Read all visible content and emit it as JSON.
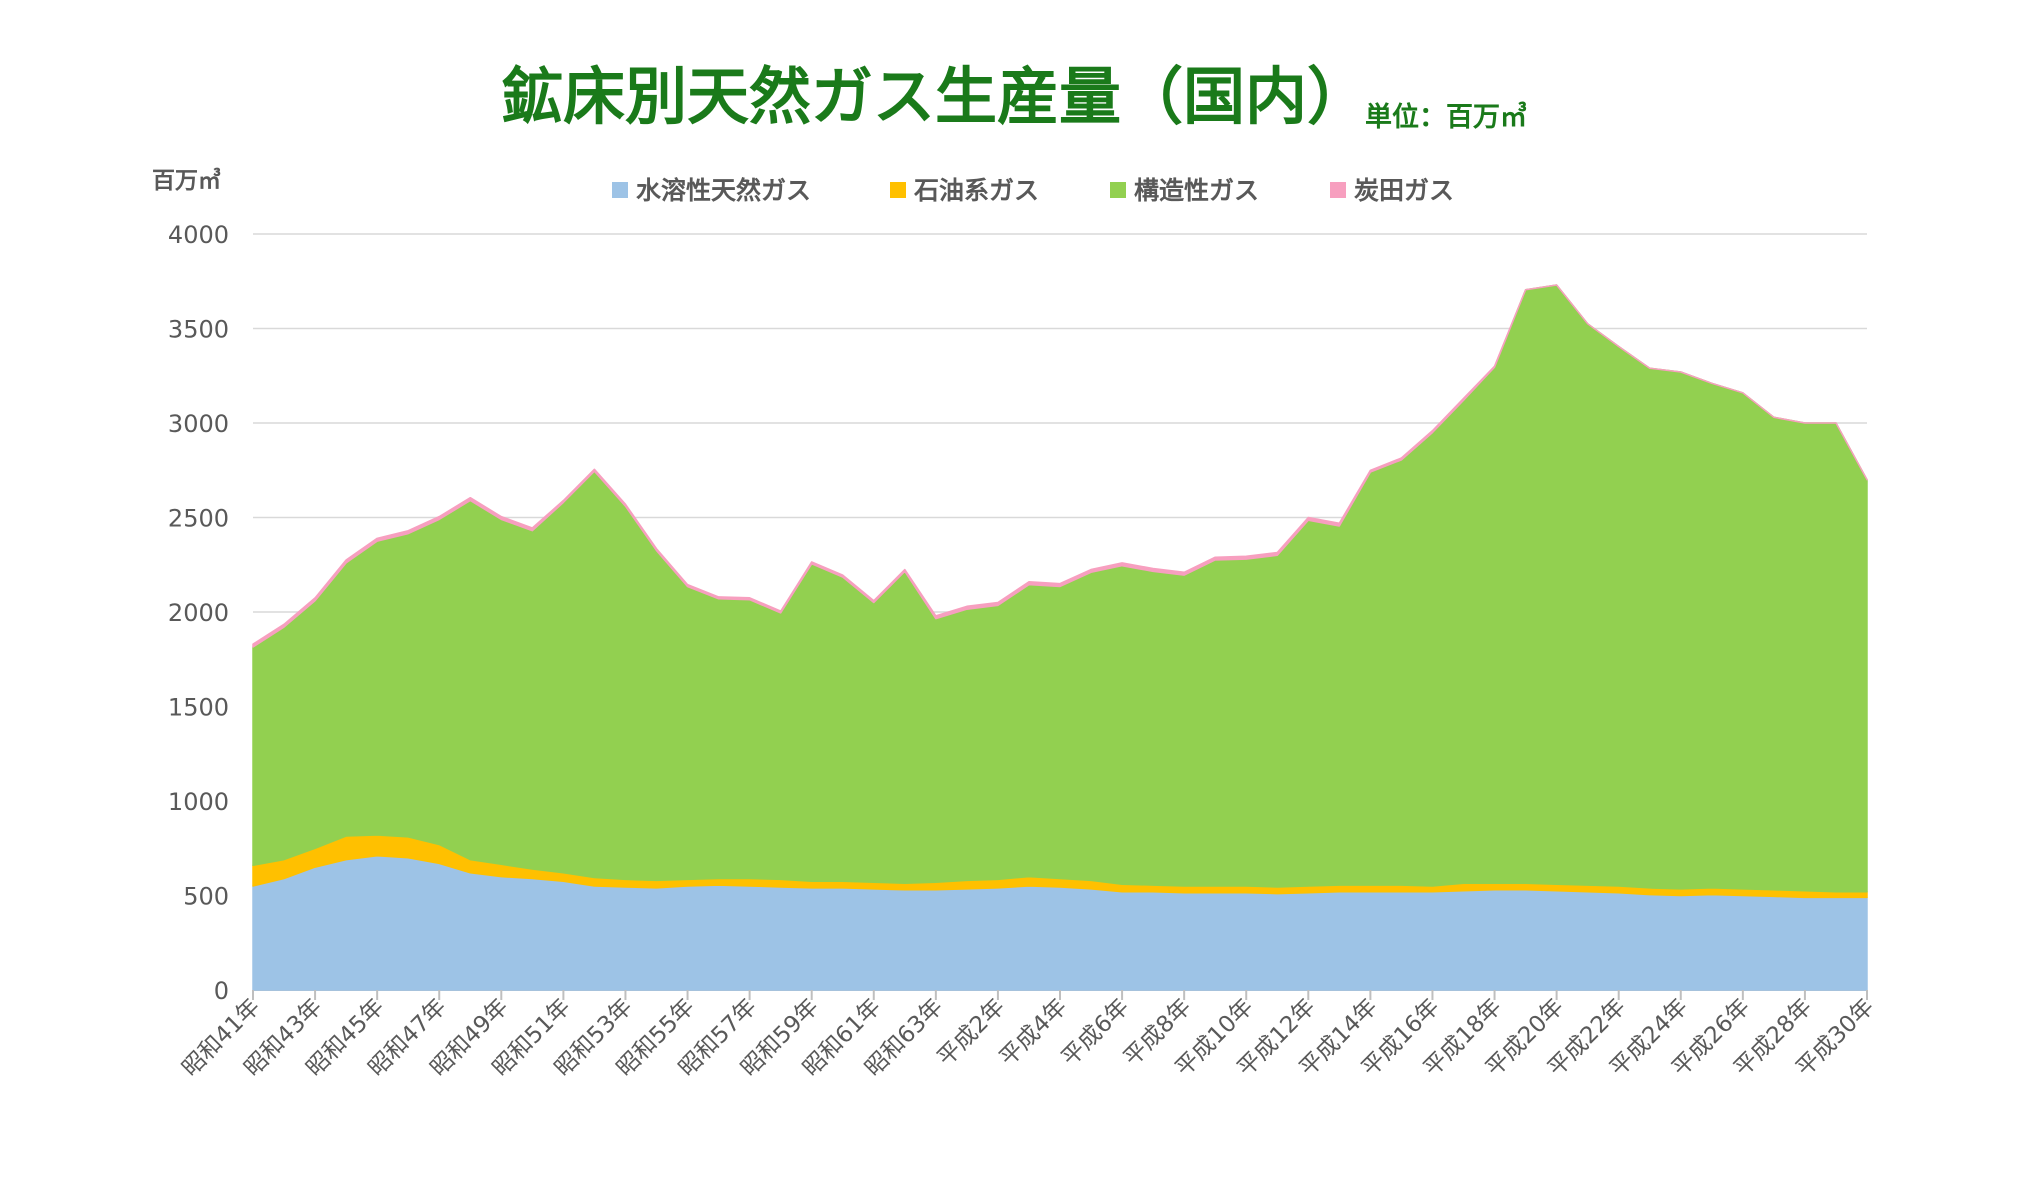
{
  "chart_data": {
    "type": "area",
    "stacked": true,
    "title": "鉱床別天然ガス生産量（国内）",
    "subtitle": "単位：百万㎥",
    "ylabel": "百万㎥",
    "xlabel": "",
    "ylim": [
      0,
      4000
    ],
    "yticks": [
      0,
      500,
      1000,
      1500,
      2000,
      2500,
      3000,
      3500,
      4000
    ],
    "grid": true,
    "legend_position": "top",
    "x": [
      "昭和41年",
      "昭和42年",
      "昭和43年",
      "昭和44年",
      "昭和45年",
      "昭和46年",
      "昭和47年",
      "昭和48年",
      "昭和49年",
      "昭和50年",
      "昭和51年",
      "昭和52年",
      "昭和53年",
      "昭和54年",
      "昭和55年",
      "昭和56年",
      "昭和57年",
      "昭和58年",
      "昭和59年",
      "昭和60年",
      "昭和61年",
      "昭和62年",
      "昭和63年",
      "平成元年",
      "平成2年",
      "平成3年",
      "平成4年",
      "平成5年",
      "平成6年",
      "平成7年",
      "平成8年",
      "平成9年",
      "平成10年",
      "平成11年",
      "平成12年",
      "平成13年",
      "平成14年",
      "平成15年",
      "平成16年",
      "平成17年",
      "平成18年",
      "平成19年",
      "平成20年",
      "平成21年",
      "平成22年",
      "平成23年",
      "平成24年",
      "平成25年",
      "平成26年",
      "平成27年",
      "平成28年",
      "平成29年",
      "平成30年"
    ],
    "x_tick_labels": [
      "昭和41年",
      "",
      "昭和43年",
      "",
      "昭和45年",
      "",
      "昭和47年",
      "",
      "昭和49年",
      "",
      "昭和51年",
      "",
      "昭和53年",
      "",
      "昭和55年",
      "",
      "昭和57年",
      "",
      "昭和59年",
      "",
      "昭和61年",
      "",
      "昭和63年",
      "",
      "平成2年",
      "",
      "平成4年",
      "",
      "平成6年",
      "",
      "平成8年",
      "",
      "平成10年",
      "",
      "平成12年",
      "",
      "平成14年",
      "",
      "平成16年",
      "",
      "平成18年",
      "",
      "平成20年",
      "",
      "平成22年",
      "",
      "平成24年",
      "",
      "平成26年",
      "",
      "平成28年",
      "",
      "平成30年"
    ],
    "series": [
      {
        "name": "水溶性天然ガス",
        "color": "#9dc3e6",
        "values": [
          550,
          590,
          650,
          690,
          710,
          700,
          670,
          620,
          600,
          590,
          575,
          550,
          545,
          540,
          550,
          555,
          550,
          545,
          540,
          540,
          535,
          530,
          530,
          535,
          540,
          550,
          545,
          535,
          520,
          520,
          515,
          515,
          515,
          510,
          515,
          520,
          520,
          520,
          520,
          525,
          530,
          530,
          525,
          520,
          515,
          505,
          500,
          505,
          500,
          495,
          490,
          490,
          490
        ]
      },
      {
        "name": "石油系ガス",
        "color": "#ffc000",
        "values": [
          110,
          100,
          100,
          125,
          110,
          110,
          100,
          70,
          65,
          50,
          45,
          45,
          40,
          40,
          35,
          35,
          40,
          40,
          35,
          35,
          35,
          35,
          40,
          45,
          45,
          50,
          45,
          45,
          40,
          35,
          35,
          35,
          35,
          35,
          35,
          35,
          35,
          35,
          30,
          40,
          35,
          35,
          35,
          35,
          35,
          35,
          35,
          35,
          35,
          35,
          35,
          30,
          30
        ]
      },
      {
        "name": "構造性ガス",
        "color": "#92d050",
        "values": [
          1155,
          1230,
          1310,
          1445,
          1555,
          1605,
          1720,
          1900,
          1825,
          1790,
          1960,
          2150,
          1975,
          1745,
          1550,
          1480,
          1475,
          1410,
          1680,
          1610,
          1480,
          1650,
          1395,
          1435,
          1450,
          1545,
          1545,
          1630,
          1685,
          1660,
          1645,
          1725,
          1730,
          1755,
          1935,
          1900,
          2185,
          2250,
          2400,
          2555,
          2730,
          3140,
          3170,
          2970,
          2855,
          2750,
          2735,
          2670,
          2625,
          2500,
          2475,
          2480,
          2180
        ]
      },
      {
        "name": "炭田ガス",
        "color": "#f79fbf",
        "values": [
          15,
          15,
          15,
          15,
          15,
          15,
          15,
          15,
          15,
          15,
          10,
          10,
          10,
          10,
          10,
          10,
          10,
          10,
          10,
          10,
          10,
          10,
          15,
          15,
          15,
          15,
          15,
          15,
          15,
          15,
          15,
          15,
          15,
          15,
          15,
          15,
          10,
          10,
          10,
          10,
          5,
          0,
          0,
          0,
          0,
          0,
          0,
          0,
          0,
          0,
          0,
          0,
          0
        ]
      }
    ]
  }
}
